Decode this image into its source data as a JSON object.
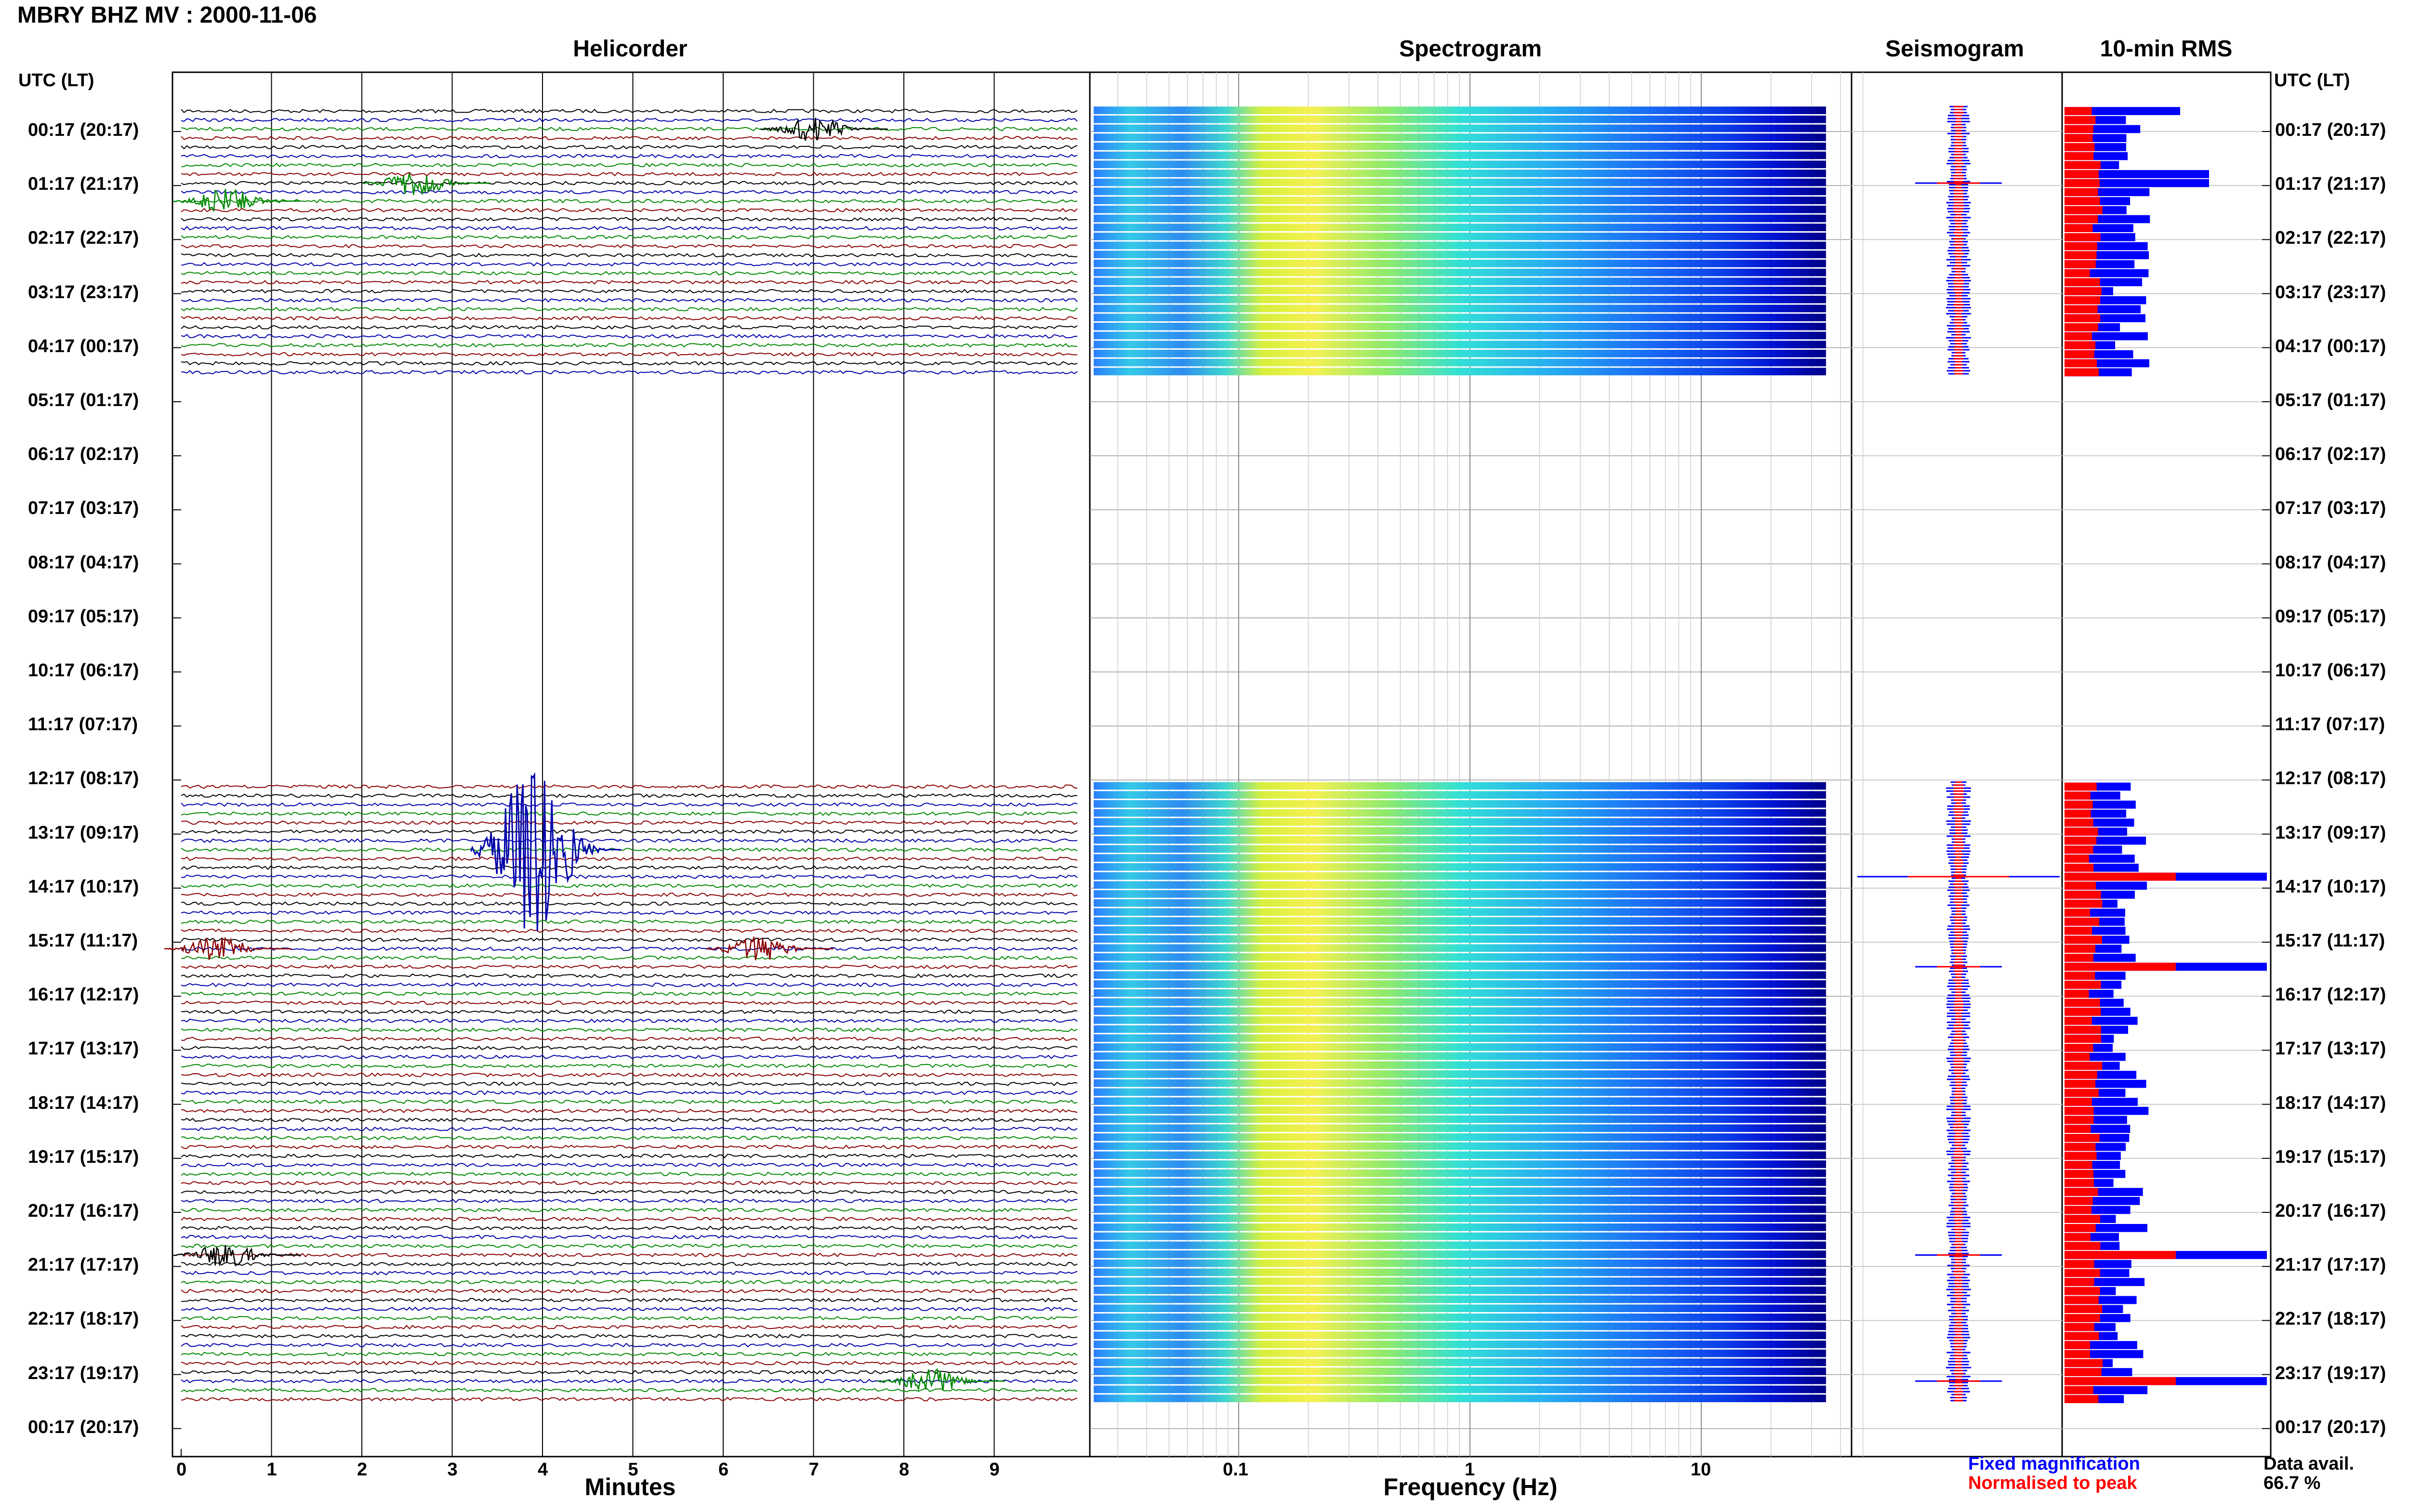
{
  "title": "MBRY BHZ MV : 2000-11-06",
  "panels": {
    "helicorder": "Helicorder",
    "spectrogram": "Spectrogram",
    "seismogram": "Seismogram",
    "rms": "10-min RMS"
  },
  "axis_header": "UTC (LT)",
  "time_labels": [
    "00:17 (20:17)",
    "01:17 (21:17)",
    "02:17 (22:17)",
    "03:17 (23:17)",
    "04:17 (00:17)",
    "05:17 (01:17)",
    "06:17 (02:17)",
    "07:17 (03:17)",
    "08:17 (04:17)",
    "09:17 (05:17)",
    "10:17 (06:17)",
    "11:17 (07:17)",
    "12:17 (08:17)",
    "13:17 (09:17)",
    "14:17 (10:17)",
    "15:17 (11:17)",
    "16:17 (12:17)",
    "17:17 (13:17)",
    "18:17 (14:17)",
    "19:17 (15:17)",
    "20:17 (16:17)",
    "21:17 (17:17)",
    "22:17 (18:17)",
    "23:17 (19:17)",
    "00:17 (20:17)"
  ],
  "helicorder_xlabel": "Minutes",
  "helicorder_xticks": [
    "0",
    "1",
    "2",
    "3",
    "4",
    "5",
    "6",
    "7",
    "8",
    "9"
  ],
  "spectrogram_xlabel": "Frequency (Hz)",
  "spectrogram_xticks": [
    "0.1",
    "1",
    "10"
  ],
  "legend": {
    "fixed": "Fixed magnification",
    "normalised": "Normalised to peak"
  },
  "data_avail_label": "Data avail.",
  "data_avail_value": "66.7 %",
  "colors": {
    "trace_cycle": [
      "#000000",
      "#0000aa",
      "#008800",
      "#8b0000"
    ],
    "rms_fixed": "#0000ff",
    "rms_normalised": "#ff0000"
  },
  "chart_data": [
    {
      "type": "line",
      "panel": "Helicorder",
      "xlabel": "Minutes",
      "xlim": [
        0,
        10
      ],
      "rows_per_hour": 6,
      "data_gaps_utc": [
        [
          "05:00",
          "12:30"
        ]
      ],
      "events": [
        {
          "utc": "00:17",
          "minute": 7.0,
          "series": 0
        },
        {
          "utc": "01:17",
          "minute": 2.6,
          "series": 2
        },
        {
          "utc": "01:37",
          "minute": 0.5,
          "series": 2
        },
        {
          "utc": "13:37",
          "minute": 3.9,
          "series": 1
        },
        {
          "utc": "15:27",
          "minute": 0.4,
          "series": 3
        },
        {
          "utc": "15:27",
          "minute": 6.4,
          "series": 3
        },
        {
          "utc": "21:07",
          "minute": 0.5,
          "series": 0
        },
        {
          "utc": "23:27",
          "minute": 8.3,
          "series": 2
        }
      ]
    },
    {
      "type": "heatmap",
      "panel": "Spectrogram",
      "xlabel": "Frequency (Hz)",
      "xscale": "log",
      "xlim": [
        0.025,
        50
      ],
      "colormap": "jet",
      "peak_band_hz": [
        0.15,
        0.6
      ]
    },
    {
      "type": "line",
      "panel": "Seismogram",
      "spikes_utc": [
        "01:17",
        "14:07",
        "15:47",
        "21:07",
        "23:27"
      ]
    },
    {
      "type": "bar",
      "panel": "10-min RMS",
      "series": [
        {
          "name": "Fixed magnification",
          "color": "#0000ff"
        },
        {
          "name": "Normalised to peak",
          "color": "#ff0000"
        }
      ],
      "peaks_utc": [
        "14:07",
        "15:47",
        "21:07",
        "23:27"
      ]
    }
  ]
}
